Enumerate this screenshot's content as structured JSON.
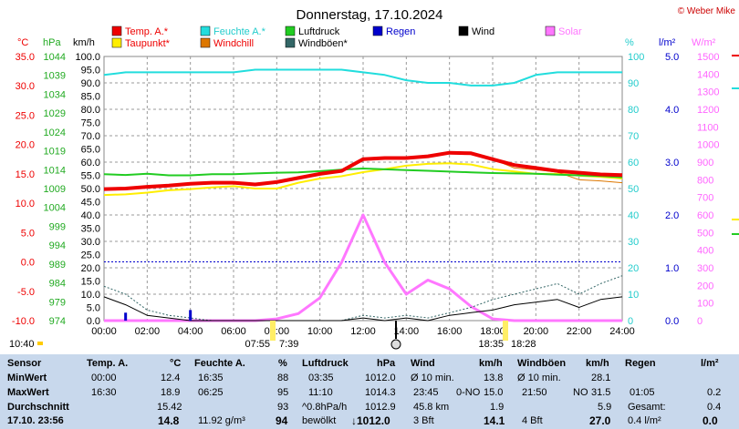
{
  "title": "Donnerstag, 17.10.2024",
  "copyright": "© Weber Mike",
  "axes": {
    "left_units": [
      "°C",
      "hPa",
      "km/h"
    ],
    "right_units": [
      "%",
      "l/m²",
      "W/m²"
    ],
    "temp_ticks": [
      "35.0",
      "30.0",
      "25.0",
      "20.0",
      "15.0",
      "10.0",
      "5.0",
      "0.0",
      "-5.0",
      "-10.0"
    ],
    "hpa_ticks": [
      "1044",
      "1039",
      "1034",
      "1029",
      "1024",
      "1019",
      "1014",
      "1009",
      "1004",
      "999",
      "994",
      "989",
      "984",
      "979",
      "974"
    ],
    "kmh_ticks": [
      "100.0",
      "95.0",
      "90.0",
      "85.0",
      "80.0",
      "75.0",
      "70.0",
      "65.0",
      "60.0",
      "55.0",
      "50.0",
      "45.0",
      "40.0",
      "35.0",
      "30.0",
      "25.0",
      "20.0",
      "15.0",
      "10.0",
      "5.0",
      "0.0"
    ],
    "pct_ticks": [
      "100",
      "90",
      "80",
      "70",
      "60",
      "50",
      "40",
      "30",
      "20",
      "10",
      "0"
    ],
    "rain_ticks": [
      "5.0",
      "4.0",
      "3.0",
      "2.0",
      "1.0",
      "0.0"
    ],
    "solar_ticks": [
      "1500",
      "1400",
      "1300",
      "1200",
      "1100",
      "1000",
      "900",
      "800",
      "700",
      "600",
      "500",
      "400",
      "300",
      "200",
      "100",
      "0"
    ],
    "time_ticks": [
      "00:00",
      "02:00",
      "04:00",
      "06:00",
      "08:00",
      "10:00",
      "12:00",
      "14:00",
      "16:00",
      "18:00",
      "20:00",
      "22:00",
      "24:00"
    ]
  },
  "legend": [
    {
      "label": "Temp. A.*",
      "color": "#ee0000",
      "text_color": "#ee0000"
    },
    {
      "label": "Feuchte A.*",
      "color": "#22dddd",
      "text_color": "#22cccc"
    },
    {
      "label": "Luftdruck",
      "color": "#22cc22",
      "text_color": "#000000"
    },
    {
      "label": "Regen",
      "color": "#0000cc",
      "text_color": "#0000cc"
    },
    {
      "label": "Wind",
      "color": "#000000",
      "text_color": "#000000"
    },
    {
      "label": "Solar",
      "color": "#ff77ff",
      "text_color": "#ff77ff"
    },
    {
      "label": "Taupunkt*",
      "color": "#ffee00",
      "text_color": "#ee0000"
    },
    {
      "label": "Windchill",
      "color": "#dd7700",
      "text_color": "#ee0000"
    },
    {
      "label": "Windböen*",
      "color": "#336666",
      "text_color": "#000000"
    }
  ],
  "sun": {
    "sunrise_label": "07:55",
    "sunset_label": "7:39",
    "dusk_label": "18:35",
    "dusk2_label": "18:28",
    "moon_time": "10:40"
  },
  "chart_data": {
    "type": "line",
    "xlabel": "",
    "x_range_hours": [
      0,
      24
    ],
    "temp_range": [
      -10,
      35
    ],
    "pressure_range": [
      974,
      1044
    ],
    "wind_range": [
      0,
      100
    ],
    "humidity_range": [
      0,
      100
    ],
    "rain_range": [
      0,
      5
    ],
    "solar_range": [
      0,
      1500
    ],
    "x": [
      0,
      1,
      2,
      3,
      4,
      5,
      6,
      7,
      8,
      9,
      10,
      11,
      12,
      13,
      14,
      15,
      16,
      17,
      18,
      19,
      20,
      21,
      22,
      23,
      24
    ],
    "series": [
      {
        "name": "Temp. A.*",
        "unit": "°C",
        "values": [
          12.4,
          12.5,
          12.8,
          13.0,
          13.3,
          13.5,
          13.5,
          13.2,
          13.6,
          14.3,
          15.0,
          15.5,
          17.5,
          17.7,
          17.7,
          18.0,
          18.6,
          18.5,
          17.5,
          16.5,
          16.0,
          15.5,
          15.2,
          14.9,
          14.8
        ]
      },
      {
        "name": "Taupunkt*",
        "unit": "°C",
        "values": [
          11.4,
          11.5,
          11.8,
          12.2,
          12.4,
          12.7,
          12.9,
          12.5,
          12.5,
          13.5,
          14.2,
          14.6,
          15.3,
          15.8,
          16.4,
          16.7,
          16.8,
          16.6,
          15.8,
          15.4,
          15.0,
          15.0,
          14.7,
          14.5,
          14.2
        ]
      },
      {
        "name": "Windchill",
        "unit": "°C",
        "values": [
          12.4,
          12.5,
          12.8,
          13.0,
          13.3,
          13.5,
          13.5,
          13.2,
          13.6,
          14.3,
          15.0,
          15.5,
          17.5,
          17.7,
          17.7,
          18.0,
          18.6,
          18.5,
          17.5,
          16.0,
          15.7,
          15.3,
          14.0,
          13.8,
          13.5
        ]
      },
      {
        "name": "Luftdruck",
        "unit": "hPa",
        "values": [
          1012.8,
          1012.6,
          1012.9,
          1012.5,
          1012.5,
          1012.8,
          1012.8,
          1013.0,
          1013.2,
          1013.3,
          1013.6,
          1014.0,
          1014.3,
          1014.1,
          1013.9,
          1013.7,
          1013.5,
          1013.3,
          1013.1,
          1013.0,
          1012.9,
          1012.7,
          1012.5,
          1012.3,
          1012.0
        ]
      },
      {
        "name": "Feuchte A.*",
        "unit": "%",
        "values": [
          93,
          94,
          94,
          94,
          94,
          94,
          94,
          95,
          95,
          95,
          95,
          95,
          94,
          93,
          91,
          90,
          90,
          89,
          89,
          90,
          93,
          94,
          94,
          94,
          94
        ]
      },
      {
        "name": "Wind",
        "unit": "km/h",
        "values": [
          9,
          6,
          2,
          1,
          0,
          0,
          0,
          0,
          0,
          0,
          0,
          0,
          1,
          0,
          1,
          0,
          2,
          3,
          4,
          6,
          7,
          8,
          5,
          8,
          9
        ]
      },
      {
        "name": "Windböen*",
        "unit": "km/h",
        "values": [
          13,
          10,
          4,
          2,
          1,
          0,
          0,
          0,
          0,
          0,
          0,
          0,
          2,
          1,
          2,
          1,
          3,
          5,
          8,
          10,
          12,
          14,
          10,
          14,
          17
        ]
      },
      {
        "name": "Solar",
        "unit": "W/m²",
        "values": [
          0,
          0,
          0,
          0,
          0,
          0,
          0,
          0,
          10,
          40,
          130,
          330,
          600,
          330,
          150,
          230,
          180,
          80,
          10,
          0,
          0,
          0,
          0,
          0,
          0
        ]
      },
      {
        "name": "Regen",
        "unit": "l/m²",
        "values": [
          0,
          0.15,
          0,
          0,
          0.2,
          0,
          0,
          0,
          0,
          0,
          0,
          0,
          0,
          0,
          0,
          0,
          0,
          0,
          0,
          0,
          0,
          0,
          0,
          0,
          0
        ]
      }
    ]
  },
  "stats": {
    "headers": [
      "Sensor",
      "Temp. A.",
      "°C",
      "Feuchte A.",
      "%",
      "Luftdruck",
      "hPa",
      "Wind",
      "km/h",
      "Windböen",
      "km/h",
      "Regen",
      "l/m²"
    ],
    "min": {
      "label": "MinWert",
      "temp_time": "00:00",
      "temp": "12.4",
      "hum_time": "16:35",
      "hum": "88",
      "press_time": "03:35",
      "press": "1012.0",
      "wind_label": "Ø 10 min.",
      "wind": "13.8",
      "gust_label": "Ø 10 min.",
      "gust": "28.1"
    },
    "max": {
      "label": "MaxWert",
      "temp_time": "16:30",
      "temp": "18.9",
      "hum_time": "06:25",
      "hum": "95",
      "press_time": "11:10",
      "press": "1014.3",
      "wind_time": "23:45",
      "wind_dir": "0-NO",
      "wind": "15.0",
      "gust_time": "21:50",
      "gust_dir": "NO",
      "gust": "31.5",
      "rain_time": "01:05",
      "rain": "0.2"
    },
    "avg": {
      "label": "Durchschnitt",
      "temp": "15.42",
      "hum": "93",
      "press_trend": "^0.8hPa/h",
      "press": "1012.9",
      "wind_dist": "45.8 km",
      "wind": "1.9",
      "gust": "5.9",
      "rain_label": "Gesamt:",
      "rain": "0.4"
    },
    "current": {
      "label": "17.10. 23:56",
      "temp": "14.8",
      "hum_abs": "11.92 g/m³",
      "hum": "94",
      "weather": "bewölkt",
      "press": "↓1012.0",
      "wind_bft": "3 Bft",
      "wind": "14.1",
      "gust_bft": "4 Bft",
      "gust": "27.0",
      "rain_rate": "0.4 l/m²",
      "rain": "0.0"
    }
  }
}
